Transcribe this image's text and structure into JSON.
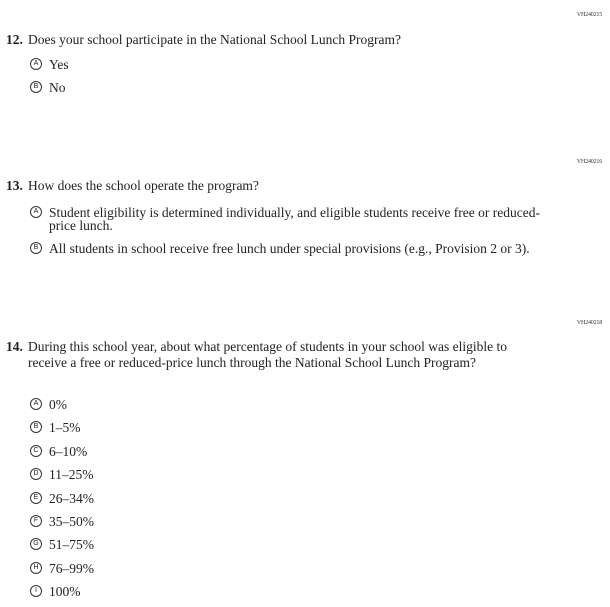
{
  "questions": [
    {
      "code": "VH240215",
      "number": "12.",
      "text": "Does your school participate in the National School Lunch Program?",
      "options": [
        {
          "letter": "A",
          "label": "Yes"
        },
        {
          "letter": "B",
          "label": "No"
        }
      ]
    },
    {
      "code": "VH240216",
      "number": "13.",
      "text": "How does the school operate the program?",
      "options": [
        {
          "letter": "A",
          "label": "Student eligibility is determined individually, and eligible students receive free or reduced-price lunch."
        },
        {
          "letter": "B",
          "label": "All students in school receive free lunch under special provisions (e.g., Provision 2 or 3)."
        }
      ]
    },
    {
      "code": "VH240218",
      "number": "14.",
      "text": "During this school year, about what percentage of students in your school was eligible to receive a free or reduced-price lunch through the National School Lunch Program?",
      "options": [
        {
          "letter": "A",
          "label": "0%"
        },
        {
          "letter": "B",
          "label": "1–5%"
        },
        {
          "letter": "C",
          "label": "6–10%"
        },
        {
          "letter": "D",
          "label": "11–25%"
        },
        {
          "letter": "E",
          "label": "26–34%"
        },
        {
          "letter": "F",
          "label": "35–50%"
        },
        {
          "letter": "G",
          "label": "51–75%"
        },
        {
          "letter": "H",
          "label": "76–99%"
        },
        {
          "letter": "I",
          "label": "100%"
        }
      ]
    }
  ]
}
